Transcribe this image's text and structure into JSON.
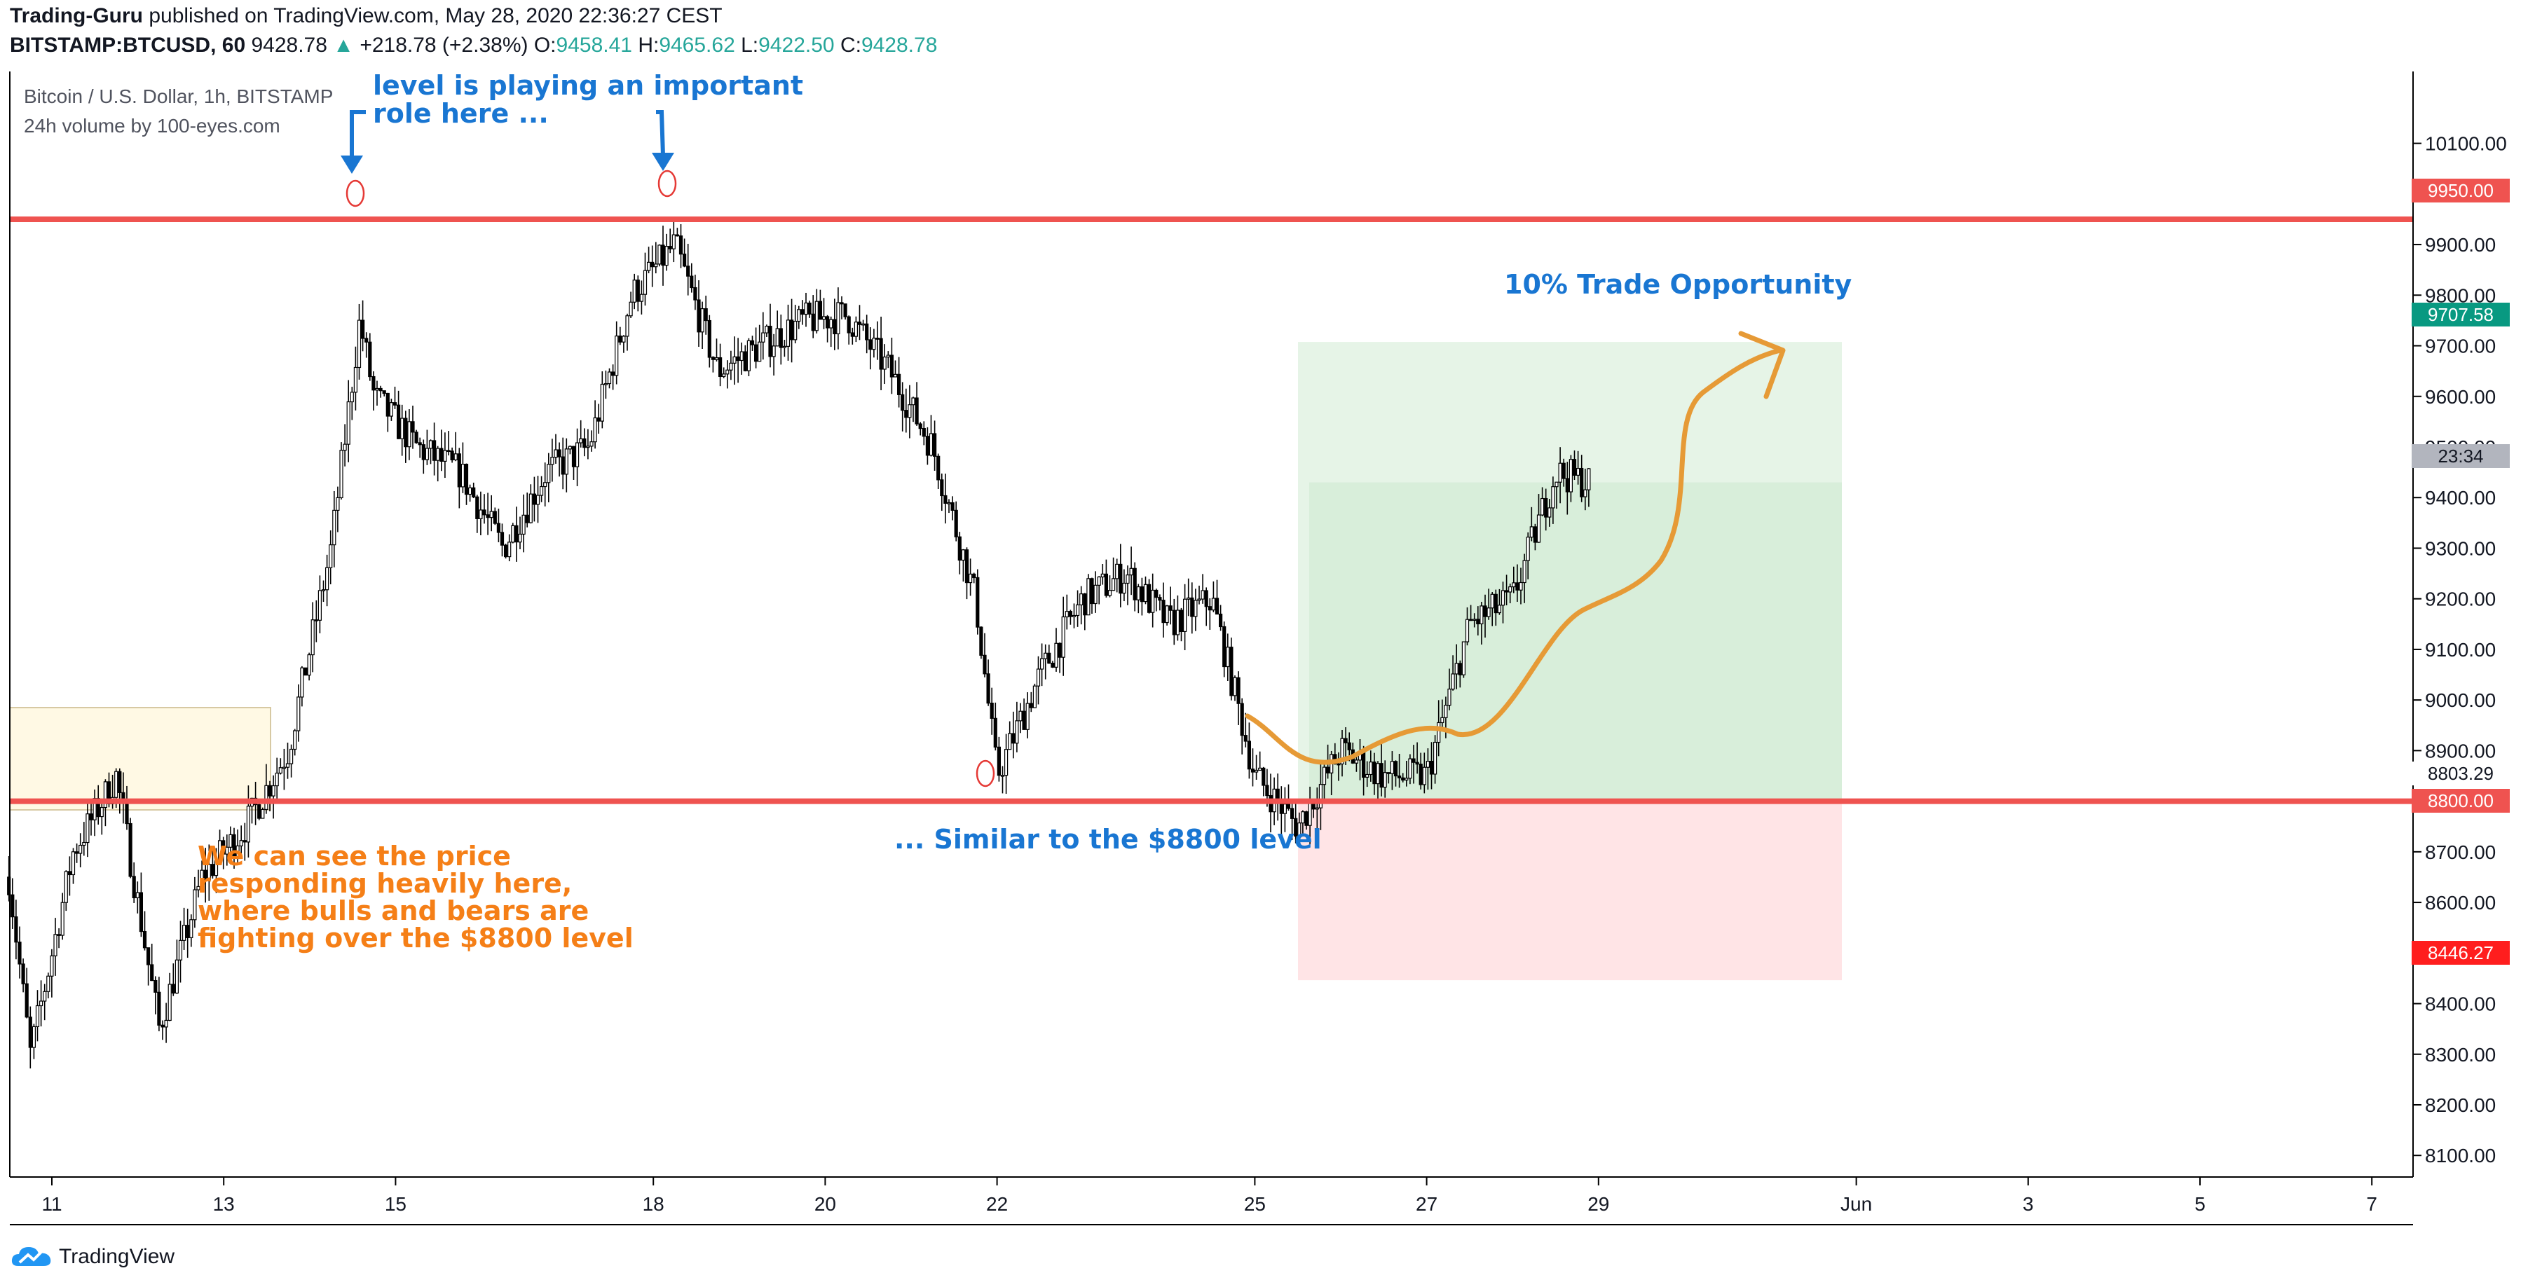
{
  "header": {
    "author": "Trading-Guru",
    "published_text": " published on TradingView.com, May 28, 2020 22:36:27 CEST",
    "symbol": "BITSTAMP:BTCUSD, 60",
    "last": "9428.78",
    "change": "+218.78 (+2.38%)",
    "o_label": "O:",
    "o_value": "9458.41",
    "h_label": "H:",
    "h_value": "9465.62",
    "l_label": "L:",
    "l_value": "9422.50",
    "c_label": "C:",
    "c_value": "9428.78"
  },
  "legend": {
    "series": "Bitcoin / U.S. Dollar, 1h, BITSTAMP",
    "indicator": "24h volume by 100-eyes.com"
  },
  "annotations": {
    "top_line1": "level is playing an important",
    "top_line2": "role here  ...",
    "opportunity": "10% Trade Opportunity",
    "similar": "... Similar to the $8800 level",
    "orange_1": "We can see the price",
    "orange_2": "responding heavily here,",
    "orange_3": "where bulls and bears are",
    "orange_4": "fighting over the $8800 level"
  },
  "price_labels": {
    "resistance": "9950.00",
    "target": "9707.58",
    "countdown": "23:34",
    "crosshair": "8803.29",
    "support": "8800.00",
    "stop": "8446.27"
  },
  "colors": {
    "level_line": "#ef5350",
    "target_label": "#089981",
    "stop_label": "#ff1e1e",
    "profit_zone": "#c8e6c9",
    "loss_zone": "#ffcdd2",
    "projection": "#e69a36",
    "annotation_blue": "#1976d2",
    "annotation_orange": "#f57f17",
    "up": "#26a69a"
  },
  "footer": {
    "brand": "TradingView",
    "icon": "cloud-logo-icon"
  },
  "chart_data": {
    "type": "candlestick",
    "title": "Bitcoin / U.S. Dollar, 1h, BITSTAMP",
    "ylim": [
      8000,
      10200
    ],
    "y_ticks": [
      "10100.00",
      "10000.00",
      "9900.00",
      "9800.00",
      "9700.00",
      "9600.00",
      "9500.00",
      "9400.00",
      "9300.00",
      "9200.00",
      "9100.00",
      "9000.00",
      "8900.00",
      "8800.00",
      "8700.00",
      "8600.00",
      "8500.00",
      "8400.00",
      "8300.00",
      "8200.00",
      "8100.00"
    ],
    "x_ticks": [
      "11",
      "13",
      "15",
      "18",
      "20",
      "22",
      "25",
      "27",
      "29",
      "Jun",
      "3",
      "5",
      "7"
    ],
    "horizontal_levels": [
      9950,
      8800
    ],
    "position": {
      "entry": 8803.29,
      "target": 9707.58,
      "stop": 8446.27
    },
    "price_path": [
      {
        "t": "May 10 12:00",
        "price": 8650
      },
      {
        "t": "May 10 18:00",
        "price": 8300
      },
      {
        "t": "May 11 06:00",
        "price": 8700
      },
      {
        "t": "May 11 18:00",
        "price": 8850
      },
      {
        "t": "May 12 06:00",
        "price": 8350
      },
      {
        "t": "May 12 18:00",
        "price": 8650
      },
      {
        "t": "May 13 06:00",
        "price": 8750
      },
      {
        "t": "May 13 18:00",
        "price": 8900
      },
      {
        "t": "May 14 06:00",
        "price": 9300
      },
      {
        "t": "May 14 14:00",
        "price": 9750
      },
      {
        "t": "May 14 18:00",
        "price": 9600
      },
      {
        "t": "May 15 06:00",
        "price": 9500
      },
      {
        "t": "May 15 18:00",
        "price": 9450
      },
      {
        "t": "May 16 06:00",
        "price": 9300
      },
      {
        "t": "May 16 18:00",
        "price": 9450
      },
      {
        "t": "May 17 06:00",
        "price": 9500
      },
      {
        "t": "May 17 18:00",
        "price": 9800
      },
      {
        "t": "May 18 06:00",
        "price": 9900
      },
      {
        "t": "May 18 18:00",
        "price": 9650
      },
      {
        "t": "May 19 06:00",
        "price": 9700
      },
      {
        "t": "May 19 18:00",
        "price": 9750
      },
      {
        "t": "May 20 06:00",
        "price": 9760
      },
      {
        "t": "May 20 18:00",
        "price": 9650
      },
      {
        "t": "May 21 06:00",
        "price": 9500
      },
      {
        "t": "May 21 18:00",
        "price": 9200
      },
      {
        "t": "May 22 00:00",
        "price": 8850
      },
      {
        "t": "May 22 12:00",
        "price": 9050
      },
      {
        "t": "May 23 00:00",
        "price": 9200
      },
      {
        "t": "May 23 12:00",
        "price": 9250
      },
      {
        "t": "May 24 00:00",
        "price": 9150
      },
      {
        "t": "May 24 12:00",
        "price": 9200
      },
      {
        "t": "May 25 00:00",
        "price": 8850
      },
      {
        "t": "May 25 12:00",
        "price": 8750
      },
      {
        "t": "May 26 00:00",
        "price": 8900
      },
      {
        "t": "May 26 12:00",
        "price": 8850
      },
      {
        "t": "May 27 00:00",
        "price": 8850
      },
      {
        "t": "May 27 12:00",
        "price": 9150
      },
      {
        "t": "May 28 00:00",
        "price": 9200
      },
      {
        "t": "May 28 12:00",
        "price": 9450
      },
      {
        "t": "May 28 22:00",
        "price": 9428.78
      }
    ]
  }
}
